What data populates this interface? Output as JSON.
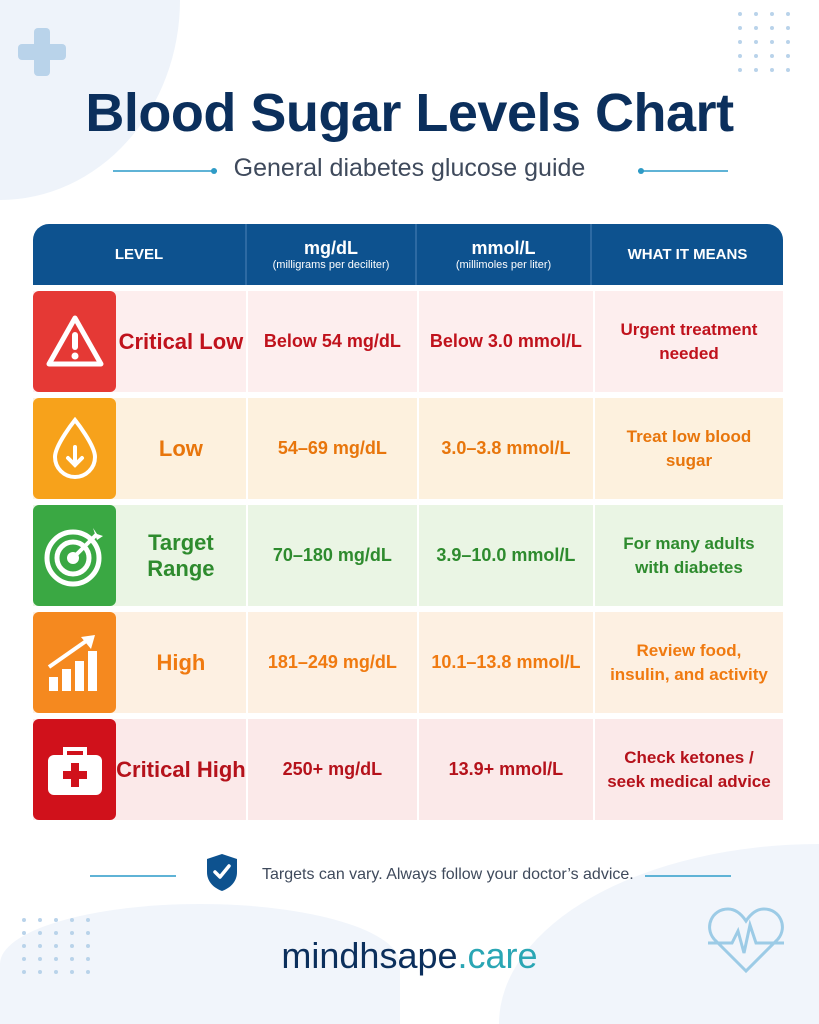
{
  "title": "Blood Sugar Levels Chart",
  "subtitle": "General diabetes glucose guide",
  "header": {
    "level": "LEVEL",
    "mgdl": "mg/dL",
    "mgdl_sub": "(milligrams per deciliter)",
    "mmol": "mmol/L",
    "mmol_sub": "(millimoles per liter)",
    "means": "WHAT IT MEANS"
  },
  "rows": [
    {
      "level": "Critical Low",
      "mgdl": "Below 54 mg/dL",
      "mmol": "Below 3.0 mmol/L",
      "means": "Urgent treatment needed",
      "icon": "warning-triangle-icon",
      "color": "#c0121c",
      "icon_bg": "#e53935",
      "bg": "#fdeeee"
    },
    {
      "level": "Low",
      "mgdl": "54–69 mg/dL",
      "mmol": "3.0–3.8 mmol/L",
      "means": "Treat low blood sugar",
      "icon": "drop-down-arrow-icon",
      "color": "#e8760c",
      "icon_bg": "#f7a21b",
      "bg": "#fdf1de"
    },
    {
      "level": "Target Range",
      "mgdl": "70–180 mg/dL",
      "mmol": "3.9–10.0 mmol/L",
      "means": "For many adults with diabetes",
      "icon": "target-icon",
      "color": "#2e8b2e",
      "icon_bg": "#3aa843",
      "bg": "#eaf5e4"
    },
    {
      "level": "High",
      "mgdl": "181–249 mg/dL",
      "mmol": "10.1–13.8 mmol/L",
      "means": "Review food, insulin, and activity",
      "icon": "rising-chart-icon",
      "color": "#f07a10",
      "icon_bg": "#f5891f",
      "bg": "#fdf0e2"
    },
    {
      "level": "Critical High",
      "mgdl": "250+ mg/dL",
      "mmol": "13.9+ mmol/L",
      "means": "Check ketones / seek medical advice",
      "icon": "first-aid-kit-icon",
      "color": "#b5121b",
      "icon_bg": "#d0111b",
      "bg": "#fbe9e9"
    }
  ],
  "footer_note": "Targets can vary. Always follow your doctor’s advice.",
  "brand": {
    "name": "mindhsape",
    "tld": ".care"
  },
  "colors": {
    "header": "#0d528f",
    "title": "#0b2f5c",
    "accent": "#2aa6b4"
  }
}
